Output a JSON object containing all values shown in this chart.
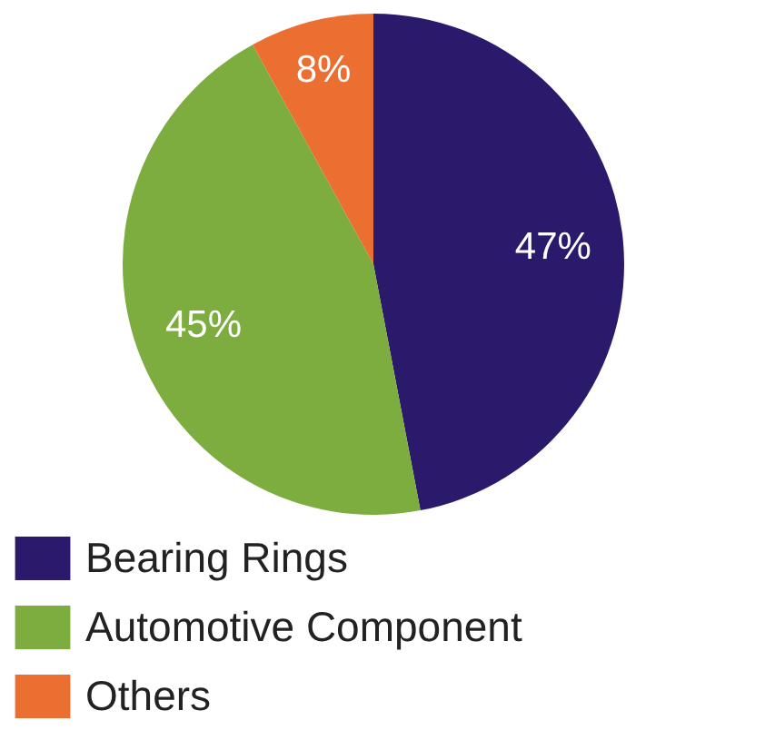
{
  "chart_data": {
    "type": "pie",
    "categories": [
      "Bearing Rings",
      "Automotive Component",
      "Others"
    ],
    "values": [
      47,
      45,
      8
    ],
    "colors": [
      "#2b1a6b",
      "#7cad3e",
      "#ec6f32"
    ],
    "value_labels": [
      "47%",
      "45%",
      "8%"
    ],
    "legend": "bottom"
  }
}
